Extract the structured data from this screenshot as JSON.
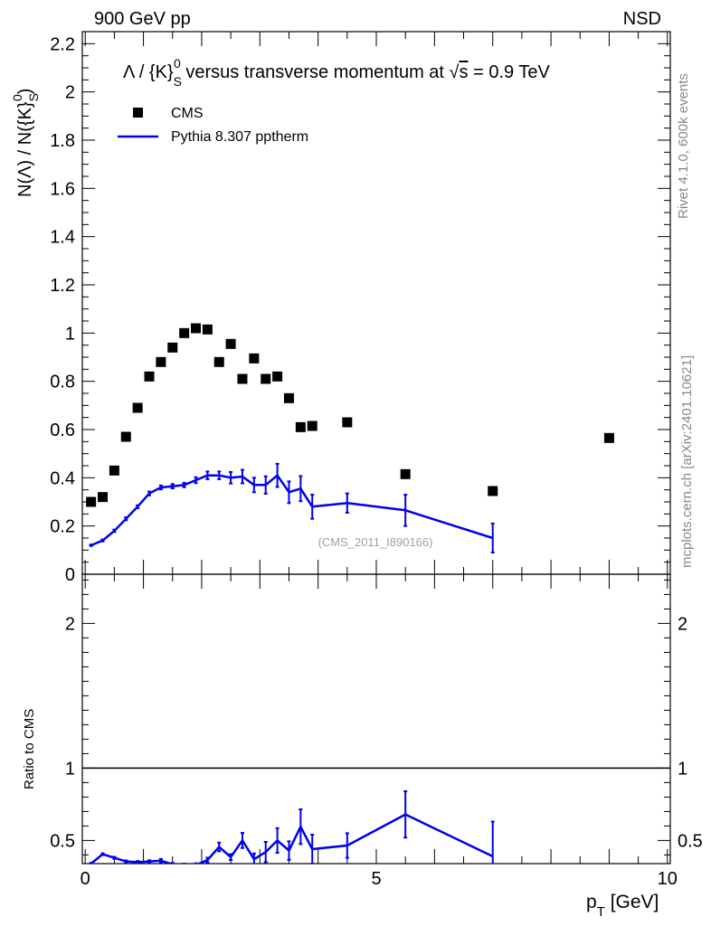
{
  "header": {
    "left": "900 GeV pp",
    "right": "NSD"
  },
  "side_text": {
    "rivet": "Rivet 4.1.0,  600k events",
    "mcplots": "mcplots.cern.ch [arXiv:2401.10621]"
  },
  "chart_data": [
    {
      "type": "scatter",
      "panel": "main",
      "title_parts": {
        "prefix": "Λ / {K}",
        "sub": "S",
        "sup": "0",
        "mid": " versus transverse momentum at ",
        "sqrt": "s",
        "suffix": " = 0.9 TeV"
      },
      "ylabel_parts": {
        "prefix": "N(Λ)  /  N({K}",
        "sub": "S",
        "sup": "0",
        "suffix": ")"
      },
      "ylim": [
        0,
        2.25
      ],
      "yticks": [
        0,
        0.2,
        0.4,
        0.6,
        0.8,
        1,
        1.2,
        1.4,
        1.6,
        1.8,
        2,
        2.2
      ],
      "ytick_labels": [
        "0",
        "0.2",
        "0.4",
        "0.6",
        "0.8",
        "1",
        "1.2",
        "1.4",
        "1.6",
        "1.8",
        "2",
        "2.2"
      ],
      "watermark": "(CMS_2011_I890166)",
      "legend": [
        {
          "name": "CMS",
          "marker": "square",
          "color": "#000000"
        },
        {
          "name": "Pythia 8.307 pptherm",
          "marker": "line",
          "color": "#0000ee"
        }
      ],
      "series": [
        {
          "name": "CMS",
          "x": [
            0.1,
            0.3,
            0.5,
            0.7,
            0.9,
            1.1,
            1.3,
            1.5,
            1.7,
            1.9,
            2.1,
            2.3,
            2.5,
            2.7,
            2.9,
            3.1,
            3.3,
            3.5,
            3.7,
            3.9,
            4.5,
            5.5,
            7.0,
            9.0
          ],
          "y": [
            0.3,
            0.32,
            0.43,
            0.57,
            0.69,
            0.82,
            0.88,
            0.94,
            1.0,
            1.02,
            1.015,
            0.88,
            0.955,
            0.81,
            0.895,
            0.81,
            0.82,
            0.73,
            0.61,
            0.615,
            0.63,
            0.415,
            0.345,
            0.565
          ]
        },
        {
          "name": "Pythia 8.307 pptherm",
          "x": [
            0.1,
            0.3,
            0.5,
            0.7,
            0.9,
            1.1,
            1.3,
            1.5,
            1.7,
            1.9,
            2.1,
            2.3,
            2.5,
            2.7,
            2.9,
            3.1,
            3.3,
            3.5,
            3.7,
            3.9,
            4.5,
            5.5,
            7.0
          ],
          "y": [
            0.12,
            0.14,
            0.18,
            0.23,
            0.28,
            0.335,
            0.36,
            0.365,
            0.37,
            0.39,
            0.41,
            0.41,
            0.4,
            0.405,
            0.37,
            0.37,
            0.41,
            0.34,
            0.355,
            0.28,
            0.295,
            0.265,
            0.15
          ],
          "yerr": [
            0.003,
            0.004,
            0.005,
            0.006,
            0.006,
            0.008,
            0.008,
            0.009,
            0.009,
            0.012,
            0.016,
            0.016,
            0.024,
            0.028,
            0.03,
            0.036,
            0.048,
            0.045,
            0.052,
            0.05,
            0.04,
            0.065,
            0.06
          ]
        }
      ]
    },
    {
      "type": "line",
      "panel": "ratio",
      "ylabel": "Ratio to CMS",
      "xlabel_parts": {
        "prefix": "p",
        "sub": "T",
        "suffix": " [GeV]"
      },
      "xlim": [
        -0.05,
        10.05
      ],
      "xticks": [
        0,
        5,
        10
      ],
      "xtick_labels": [
        "0",
        "5",
        "10"
      ],
      "ylim": [
        0.34,
        2.34
      ],
      "yticks": [
        0.5,
        1,
        2
      ],
      "ytick_labels": [
        "0.5",
        "1",
        "2"
      ],
      "reference": 1,
      "series": [
        {
          "name": "Pythia 8.307 pptherm",
          "x": [
            0.1,
            0.3,
            0.5,
            0.7,
            0.9,
            1.1,
            1.3,
            1.5,
            1.7,
            1.9,
            2.1,
            2.3,
            2.5,
            2.7,
            2.9,
            3.1,
            3.3,
            3.5,
            3.7,
            3.9,
            4.5,
            5.5,
            7.0
          ],
          "y": [
            0.34,
            0.405,
            0.38,
            0.355,
            0.35,
            0.355,
            0.36,
            0.335,
            0.33,
            0.33,
            0.365,
            0.455,
            0.385,
            0.5,
            0.37,
            0.42,
            0.5,
            0.43,
            0.595,
            0.44,
            0.465,
            0.68,
            0.39
          ],
          "yerr": [
            0.005,
            0.006,
            0.007,
            0.007,
            0.008,
            0.008,
            0.012,
            0.01,
            0.01,
            0.012,
            0.016,
            0.03,
            0.02,
            0.052,
            0.04,
            0.07,
            0.085,
            0.064,
            0.12,
            0.1,
            0.085,
            0.16,
            0.24
          ]
        }
      ]
    }
  ]
}
